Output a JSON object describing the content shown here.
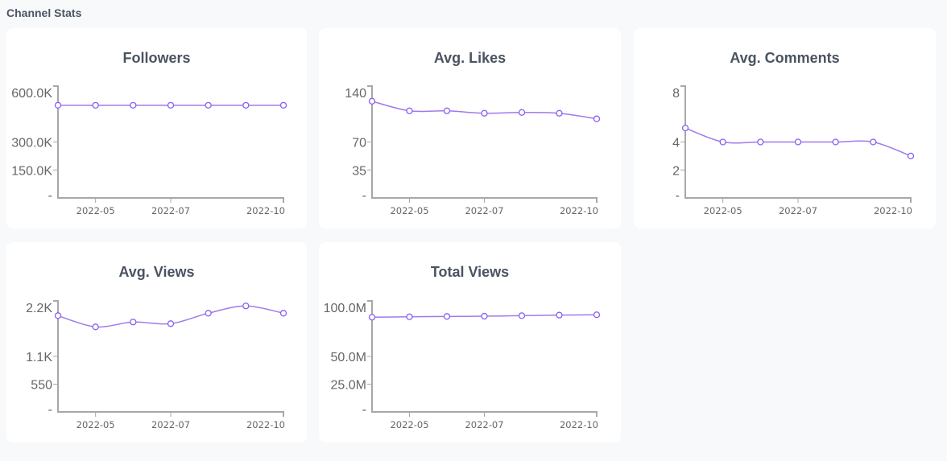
{
  "section_title": "Channel Stats",
  "colors": {
    "line": "#9f7aea",
    "marker_stroke": "#8b5cf6",
    "axis": "#a8a8a8"
  },
  "chart_data": [
    {
      "id": "followers",
      "type": "line",
      "title": "Followers",
      "xlabel": "",
      "ylabel": "",
      "x": [
        "2022-04",
        "2022-05",
        "2022-06",
        "2022-07",
        "2022-08",
        "2022-09",
        "2022-10"
      ],
      "series": [
        {
          "name": "Followers",
          "values": [
            497000,
            497000,
            497000,
            497000,
            497000,
            497000,
            497000
          ]
        }
      ],
      "ylim": [
        0,
        600000
      ],
      "yticks": [
        {
          "value": 0,
          "label": "-"
        },
        {
          "value": 150000,
          "label": "150.0K"
        },
        {
          "value": 300000,
          "label": "300.0K"
        },
        {
          "value": 600000,
          "label": "600.0K"
        }
      ],
      "xticks": [
        {
          "value": "2022-05",
          "label": "2022-05"
        },
        {
          "value": "2022-07",
          "label": "2022-07"
        },
        {
          "value": "2022-10",
          "label": "2022-10"
        }
      ],
      "grid": false,
      "legend": "none"
    },
    {
      "id": "avg-likes",
      "type": "line",
      "title": "Avg. Likes",
      "xlabel": "",
      "ylabel": "",
      "x": [
        "2022-04",
        "2022-05",
        "2022-06",
        "2022-07",
        "2022-08",
        "2022-09",
        "2022-10"
      ],
      "series": [
        {
          "name": "Avg. Likes",
          "values": [
            121,
            109,
            109,
            106,
            107,
            106,
            99
          ]
        }
      ],
      "ylim": [
        0,
        140
      ],
      "yticks": [
        {
          "value": 0,
          "label": "-"
        },
        {
          "value": 35,
          "label": "35"
        },
        {
          "value": 70,
          "label": "70"
        },
        {
          "value": 140,
          "label": "140"
        }
      ],
      "xticks": [
        {
          "value": "2022-05",
          "label": "2022-05"
        },
        {
          "value": "2022-07",
          "label": "2022-07"
        },
        {
          "value": "2022-10",
          "label": "2022-10"
        }
      ],
      "grid": false,
      "legend": "none"
    },
    {
      "id": "avg-comments",
      "type": "line",
      "title": "Avg. Comments",
      "xlabel": "",
      "ylabel": "",
      "x": [
        "2022-04",
        "2022-05",
        "2022-06",
        "2022-07",
        "2022-08",
        "2022-09",
        "2022-10"
      ],
      "series": [
        {
          "name": "Avg. Comments",
          "values": [
            5,
            4,
            4,
            4,
            4,
            4,
            3
          ]
        }
      ],
      "ylim": [
        0,
        8
      ],
      "yticks": [
        {
          "value": 0,
          "label": "-"
        },
        {
          "value": 2,
          "label": "2"
        },
        {
          "value": 4,
          "label": "4"
        },
        {
          "value": 8,
          "label": "8"
        }
      ],
      "xticks": [
        {
          "value": "2022-05",
          "label": "2022-05"
        },
        {
          "value": "2022-07",
          "label": "2022-07"
        },
        {
          "value": "2022-10",
          "label": "2022-10"
        }
      ],
      "grid": false,
      "legend": "none"
    },
    {
      "id": "avg-views",
      "type": "line",
      "title": "Avg. Views",
      "xlabel": "",
      "ylabel": "",
      "x": [
        "2022-04",
        "2022-05",
        "2022-06",
        "2022-07",
        "2022-08",
        "2022-09",
        "2022-10"
      ],
      "series": [
        {
          "name": "Avg. Views",
          "values": [
            1908,
            1685,
            1781,
            1749,
            1956,
            2100,
            1956
          ]
        }
      ],
      "ylim": [
        0,
        2200
      ],
      "yticks": [
        {
          "value": 0,
          "label": "-"
        },
        {
          "value": 550,
          "label": "550"
        },
        {
          "value": 1100,
          "label": "1.1K"
        },
        {
          "value": 2200,
          "label": "2.2K"
        }
      ],
      "xticks": [
        {
          "value": "2022-05",
          "label": "2022-05"
        },
        {
          "value": "2022-07",
          "label": "2022-07"
        },
        {
          "value": "2022-10",
          "label": "2022-10"
        }
      ],
      "grid": false,
      "legend": "none"
    },
    {
      "id": "total-views",
      "type": "line",
      "title": "Total Views",
      "xlabel": "",
      "ylabel": "",
      "x": [
        "2022-04",
        "2022-05",
        "2022-06",
        "2022-07",
        "2022-08",
        "2022-09",
        "2022-10"
      ],
      "series": [
        {
          "name": "Total Views",
          "values": [
            85300000,
            85700000,
            86000000,
            86200000,
            86700000,
            87200000,
            87500000
          ]
        }
      ],
      "ylim": [
        0,
        100000000
      ],
      "yticks": [
        {
          "value": 0,
          "label": "-"
        },
        {
          "value": 25000000,
          "label": "25.0M"
        },
        {
          "value": 50000000,
          "label": "50.0M"
        },
        {
          "value": 100000000,
          "label": "100.0M"
        }
      ],
      "xticks": [
        {
          "value": "2022-05",
          "label": "2022-05"
        },
        {
          "value": "2022-07",
          "label": "2022-07"
        },
        {
          "value": "2022-10",
          "label": "2022-10"
        }
      ],
      "grid": false,
      "legend": "none"
    }
  ]
}
